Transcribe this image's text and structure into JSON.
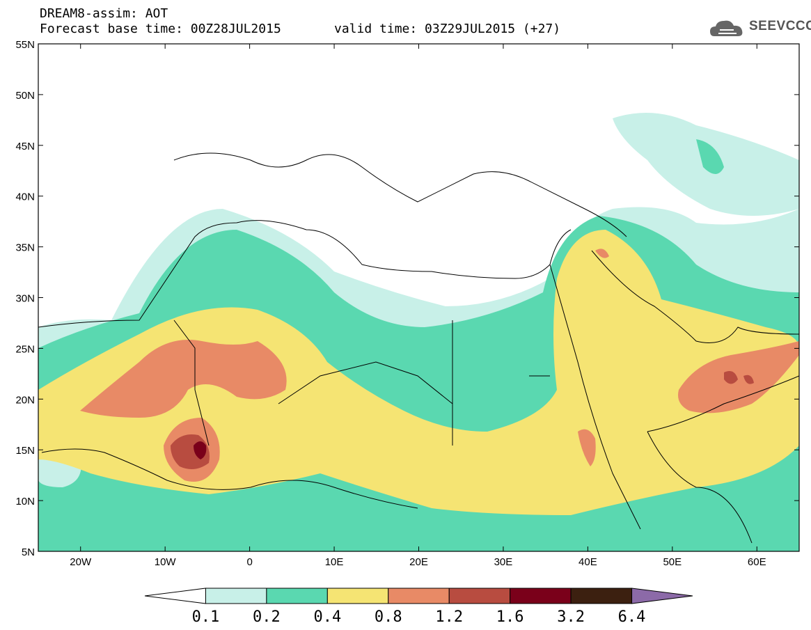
{
  "header": {
    "line1": "DREAM8-assim: AOT",
    "base_time": "Forecast base time: 00Z28JUL2015",
    "valid_time": "valid time: 03Z29JUL2015 (+27)"
  },
  "logo": {
    "text": "SEEVCCC",
    "icon": "cloud-icon"
  },
  "axes": {
    "lat_labels": [
      "55N",
      "50N",
      "45N",
      "40N",
      "35N",
      "30N",
      "25N",
      "20N",
      "15N",
      "10N",
      "5N"
    ],
    "lon_labels": [
      "20W",
      "10W",
      "0",
      "10E",
      "20E",
      "30E",
      "40E",
      "50E",
      "60E"
    ]
  },
  "colorbar": {
    "thresholds": [
      "0.1",
      "0.2",
      "0.4",
      "0.8",
      "1.2",
      "1.6",
      "3.2",
      "6.4"
    ],
    "colors": [
      "#ffffff",
      "#c8f0e8",
      "#5ad8b0",
      "#f5e473",
      "#e88a66",
      "#b84c40",
      "#7a001a",
      "#3c2010",
      "#8c6aa8"
    ]
  },
  "map": {
    "region": "North Africa, Middle East, Europe",
    "lon_range": [
      -25,
      65
    ],
    "lat_range": [
      5,
      55
    ]
  }
}
